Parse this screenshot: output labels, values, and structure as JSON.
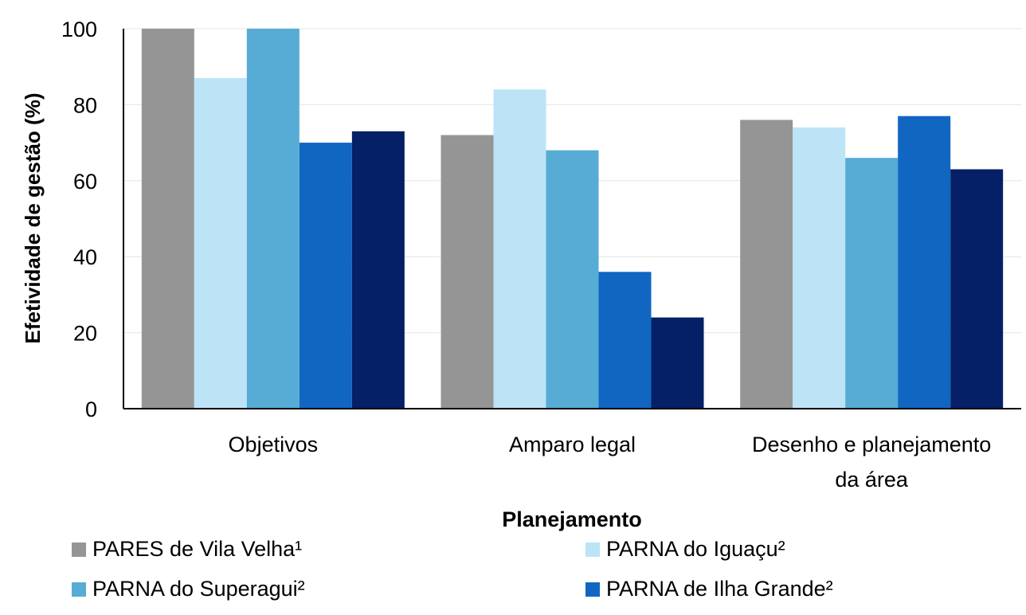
{
  "chart_data": {
    "type": "bar",
    "title": "",
    "xlabel": "Planejamento",
    "ylabel": "Efetividade de gestão (%)",
    "ylim": [
      0,
      100
    ],
    "yticks": [
      0,
      20,
      40,
      60,
      80,
      100
    ],
    "grid": true,
    "legend_position": "bottom",
    "categories": [
      [
        "Objetivos"
      ],
      [
        "Amparo legal"
      ],
      [
        "Desenho e planejamento",
        "da área"
      ]
    ],
    "series": [
      {
        "name": "PARES de Vila Velha¹",
        "color": "#959595",
        "values": [
          100,
          72,
          76
        ]
      },
      {
        "name": "PARNA do Iguaçu²",
        "color": "#bde3f7",
        "values": [
          87,
          84,
          74
        ]
      },
      {
        "name": "PARNA do Superagui²",
        "color": "#56acd4",
        "values": [
          100,
          68,
          66
        ]
      },
      {
        "name": "PARNA de Ilha Grande²",
        "color": "#1166c1",
        "values": [
          70,
          36,
          77
        ]
      },
      {
        "name": "",
        "color": "#052066",
        "values": [
          73,
          24,
          63
        ]
      }
    ]
  }
}
